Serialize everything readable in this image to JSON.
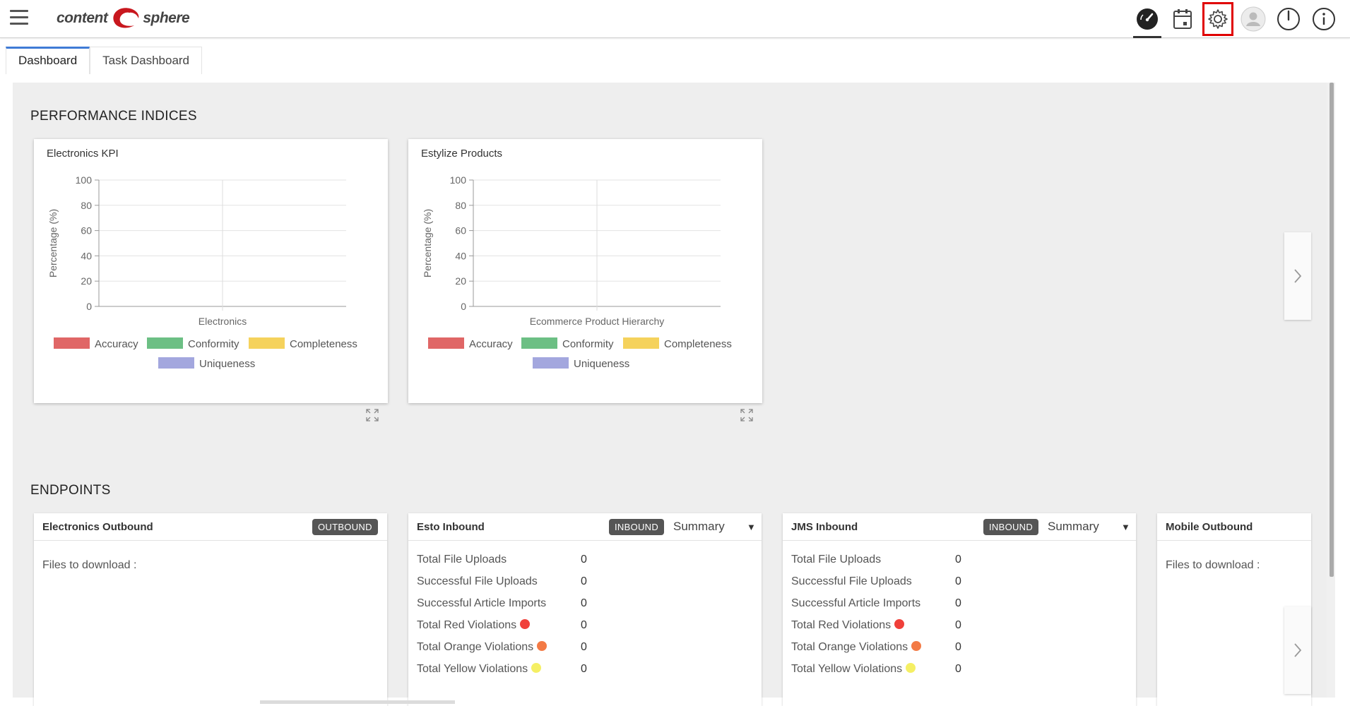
{
  "app": {
    "logo_left": "content",
    "logo_right": "sphere"
  },
  "toolbar": {
    "icons": [
      "dashboard-icon",
      "calendar-icon",
      "settings-icon",
      "user-icon",
      "power-icon",
      "info-icon"
    ],
    "highlighted": "settings-icon"
  },
  "tabs": [
    {
      "label": "Dashboard",
      "active": true
    },
    {
      "label": "Task Dashboard",
      "active": false
    }
  ],
  "performance": {
    "title": "PERFORMANCE INDICES",
    "legend": [
      "Accuracy",
      "Conformity",
      "Completeness",
      "Uniqueness"
    ],
    "colors": {
      "Accuracy": "#e06666",
      "Conformity": "#6cbf84",
      "Completeness": "#f5d25c",
      "Uniqueness": "#a3a7de"
    }
  },
  "chart_data": [
    {
      "type": "bar",
      "title": "Electronics KPI",
      "categories": [
        "Electronics"
      ],
      "xlabel": "",
      "ylabel": "Percentage (%)",
      "ylim": [
        0,
        100
      ],
      "yticks": [
        "100",
        "80",
        "60",
        "40",
        "20",
        "0"
      ],
      "series": [
        {
          "name": "Accuracy",
          "values": [
            0
          ]
        },
        {
          "name": "Conformity",
          "values": [
            0
          ]
        },
        {
          "name": "Completeness",
          "values": [
            0
          ]
        },
        {
          "name": "Uniqueness",
          "values": [
            0
          ]
        }
      ],
      "grid": true,
      "legend": "bottom"
    },
    {
      "type": "bar",
      "title": "Estylize Products",
      "categories": [
        "Ecommerce Product Hierarchy"
      ],
      "xlabel": "",
      "ylabel": "Percentage (%)",
      "ylim": [
        0,
        100
      ],
      "yticks": [
        "100",
        "80",
        "60",
        "40",
        "20",
        "0"
      ],
      "series": [
        {
          "name": "Accuracy",
          "values": [
            0
          ]
        },
        {
          "name": "Conformity",
          "values": [
            0
          ]
        },
        {
          "name": "Completeness",
          "values": [
            0
          ]
        },
        {
          "name": "Uniqueness",
          "values": [
            0
          ]
        }
      ],
      "grid": true,
      "legend": "bottom"
    }
  ],
  "endpoints": {
    "title": "ENDPOINTS",
    "cards": [
      {
        "name": "Electronics Outbound",
        "badge": "OUTBOUND",
        "files_label": "Files to download :"
      },
      {
        "name": "Esto Inbound",
        "badge": "INBOUND",
        "summary": "Summary",
        "stats": [
          {
            "label": "Total File Uploads",
            "value": "0"
          },
          {
            "label": "Successful File Uploads",
            "value": "0"
          },
          {
            "label": "Successful Article Imports",
            "value": "0"
          },
          {
            "label": "Total Red Violations",
            "value": "0",
            "dot": "#f0403a"
          },
          {
            "label": "Total Orange Violations",
            "value": "0",
            "dot": "#f37a45"
          },
          {
            "label": "Total Yellow Violations",
            "value": "0",
            "dot": "#f5ef64"
          }
        ]
      },
      {
        "name": "JMS Inbound",
        "badge": "INBOUND",
        "summary": "Summary",
        "stats": [
          {
            "label": "Total File Uploads",
            "value": "0"
          },
          {
            "label": "Successful File Uploads",
            "value": "0"
          },
          {
            "label": "Successful Article Imports",
            "value": "0"
          },
          {
            "label": "Total Red Violations",
            "value": "0",
            "dot": "#f0403a"
          },
          {
            "label": "Total Orange Violations",
            "value": "0",
            "dot": "#f37a45"
          },
          {
            "label": "Total Yellow Violations",
            "value": "0",
            "dot": "#f5ef64"
          }
        ]
      },
      {
        "name": "Mobile Outbound",
        "files_label": "Files to download :"
      }
    ]
  }
}
